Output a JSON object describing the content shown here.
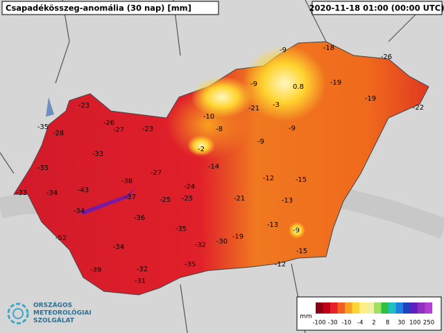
{
  "header": {
    "title": "Csapadékösszeg-anomália (30 nap) [mm]",
    "timestamp": "2020-11-18 01:00 (00:00 UTC)"
  },
  "stations": [
    -9,
    -18,
    -26,
    -19,
    -9,
    0.8,
    -19,
    -22,
    -23,
    -21,
    -3,
    -35,
    -26,
    -27,
    -23,
    -10,
    -8,
    -9,
    -28,
    -9,
    -2,
    -33,
    -14,
    -35,
    -27,
    -38,
    -12,
    -15,
    -24,
    -33,
    -34,
    -43,
    -37,
    -25,
    -25,
    -21,
    -13,
    -34,
    -36,
    -35,
    -13,
    -9,
    -52,
    -19,
    -32,
    -30,
    -34,
    -15,
    -35,
    -12,
    -39,
    -32,
    -31
  ],
  "legend": {
    "unit": "mm",
    "ticks": [
      -100,
      -30,
      -10,
      -4,
      2,
      8,
      30,
      100,
      250
    ]
  },
  "logo": {
    "lines": [
      "ORSZÁGOS",
      "METEOROLÓGIAI",
      "SZOLGÁLAT"
    ]
  }
}
